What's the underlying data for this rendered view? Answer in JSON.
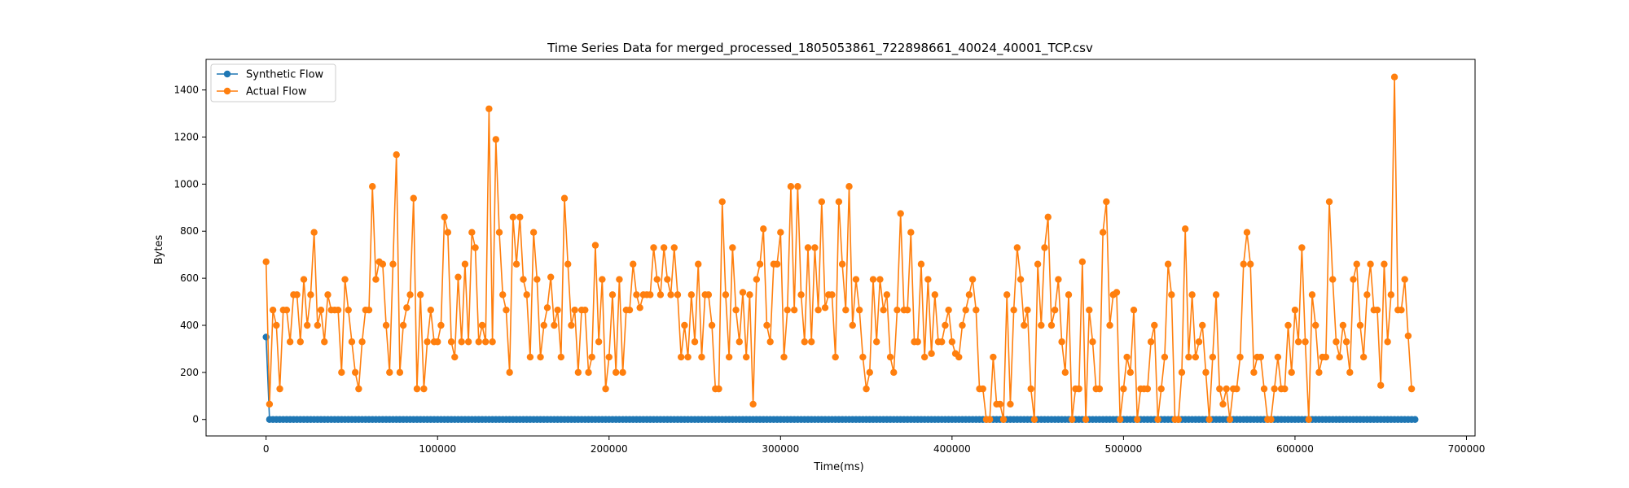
{
  "chart_data": {
    "type": "line",
    "title": "Time Series Data for merged_processed_1805053861_722898661_40024_40001_TCP.csv",
    "xlabel": "Time(ms)",
    "ylabel": "Bytes",
    "xlim": [
      -35000,
      705000
    ],
    "ylim": [
      -70,
      1530
    ],
    "xticks": [
      0,
      100000,
      200000,
      300000,
      400000,
      500000,
      600000,
      700000
    ],
    "xtick_labels": [
      "0",
      "100000",
      "200000",
      "300000",
      "400000",
      "500000",
      "600000",
      "700000"
    ],
    "yticks": [
      0,
      200,
      400,
      600,
      800,
      1000,
      1200,
      1400
    ],
    "ytick_labels": [
      "0",
      "200",
      "400",
      "600",
      "800",
      "1000",
      "1200",
      "1400"
    ],
    "legend_position": "top-left",
    "series": [
      {
        "name": "Synthetic Flow",
        "color": "#1f77b4",
        "x_start": 0,
        "x_step": 2000,
        "values_note_first": 350,
        "values_rest": 0,
        "count": 336
      },
      {
        "name": "Actual Flow",
        "color": "#ff7f0e",
        "x_start": 0,
        "x_step": 2000,
        "values": [
          670,
          65,
          465,
          400,
          130,
          465,
          465,
          330,
          530,
          530,
          330,
          595,
          400,
          530,
          795,
          400,
          465,
          330,
          530,
          465,
          465,
          465,
          200,
          595,
          465,
          330,
          200,
          130,
          330,
          465,
          465,
          990,
          595,
          670,
          660,
          400,
          200,
          660,
          1125,
          200,
          400,
          475,
          530,
          940,
          130,
          530,
          130,
          330,
          465,
          330,
          330,
          400,
          860,
          795,
          330,
          265,
          605,
          330,
          660,
          330,
          795,
          730,
          330,
          400,
          330,
          1320,
          330,
          1190,
          795,
          530,
          465,
          200,
          860,
          660,
          860,
          595,
          530,
          265,
          795,
          595,
          265,
          400,
          475,
          605,
          400,
          465,
          265,
          940,
          660,
          400,
          465,
          200,
          465,
          465,
          200,
          265,
          740,
          330,
          595,
          130,
          265,
          530,
          200,
          595,
          200,
          465,
          465,
          660,
          530,
          475,
          530,
          530,
          530,
          730,
          595,
          530,
          730,
          595,
          530,
          730,
          530,
          265,
          400,
          265,
          530,
          330,
          660,
          265,
          530,
          530,
          400,
          130,
          130,
          925,
          530,
          265,
          730,
          465,
          330,
          540,
          265,
          530,
          65,
          595,
          660,
          810,
          400,
          330,
          660,
          660,
          795,
          265,
          465,
          990,
          465,
          990,
          530,
          330,
          730,
          330,
          730,
          465,
          925,
          475,
          530,
          530,
          265,
          925,
          660,
          465,
          990,
          400,
          595,
          465,
          265,
          130,
          200,
          595,
          330,
          595,
          465,
          530,
          265,
          200,
          465,
          875,
          465,
          465,
          795,
          330,
          330,
          660,
          265,
          595,
          280,
          530,
          330,
          330,
          400,
          465,
          330,
          280,
          265,
          400,
          465,
          530,
          595,
          465,
          130,
          130,
          0,
          0,
          265,
          65,
          65,
          0,
          530,
          65,
          465,
          730,
          595,
          400,
          465,
          130,
          0,
          660,
          400,
          730,
          860,
          400,
          465,
          595,
          330,
          200,
          530,
          0,
          130,
          130,
          670,
          0,
          465,
          330,
          130,
          130,
          795,
          925,
          400,
          530,
          540,
          0,
          130,
          265,
          200,
          465,
          0,
          130,
          130,
          130,
          330,
          400,
          0,
          130,
          265,
          660,
          530,
          0,
          0,
          200,
          810,
          265,
          530,
          265,
          330,
          400,
          200,
          0,
          265,
          530,
          130,
          65,
          130,
          0,
          130,
          130,
          265,
          660,
          795,
          660,
          200,
          265,
          265,
          130,
          0,
          0,
          130,
          265,
          130,
          130,
          400,
          200,
          465,
          330,
          730,
          330,
          0,
          530,
          400,
          200,
          265,
          265,
          925,
          595,
          330,
          265,
          400,
          330,
          200,
          595,
          660,
          400,
          265,
          530,
          660,
          465,
          465,
          145,
          660,
          330,
          530,
          1455,
          465,
          465,
          595,
          355,
          130
        ]
      }
    ]
  }
}
